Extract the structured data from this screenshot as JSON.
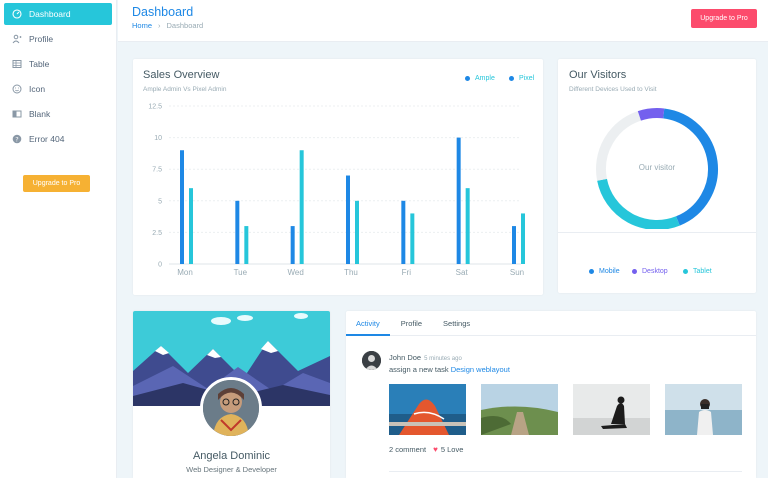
{
  "sidebar": {
    "items": [
      {
        "label": "Dashboard",
        "icon": "gauge-icon",
        "active": true
      },
      {
        "label": "Profile",
        "icon": "user-icon"
      },
      {
        "label": "Table",
        "icon": "table-icon"
      },
      {
        "label": "Icon",
        "icon": "smiley-icon"
      },
      {
        "label": "Blank",
        "icon": "columns-icon"
      },
      {
        "label": "Error 404",
        "icon": "help-circle-icon"
      }
    ],
    "upgrade_label": "Upgrade to Pro"
  },
  "header": {
    "title": "Dashboard",
    "breadcrumb_home": "Home",
    "breadcrumb_sep": "›",
    "breadcrumb_current": "Dashboard",
    "upgrade_label": "Upgrade to Pro"
  },
  "sales": {
    "title": "Sales Overview",
    "subtitle": "Ample Admin Vs Pixel Admin",
    "legend": [
      {
        "name": "Ample",
        "color": "#1e88e5"
      },
      {
        "name": "Pixel",
        "color": "#26c6da"
      }
    ]
  },
  "chart_data": {
    "type": "bar",
    "categories": [
      "Mon",
      "Tue",
      "Wed",
      "Thu",
      "Fri",
      "Sat",
      "Sun"
    ],
    "series": [
      {
        "name": "Ample",
        "values": [
          9,
          5,
          3,
          7,
          5,
          10,
          3
        ],
        "color": "#1e88e5"
      },
      {
        "name": "Pixel",
        "values": [
          6,
          3,
          9,
          5,
          4,
          6,
          4
        ],
        "color": "#26c6da"
      }
    ],
    "yticks": [
      "0",
      "2.5",
      "5",
      "7.5",
      "10",
      "12.5"
    ],
    "ylim": [
      0,
      12.5
    ],
    "grid": true,
    "legend": "top-right"
  },
  "visitors": {
    "title": "Our Visitors",
    "subtitle": "Different Devices Used to Visit",
    "center_label": "Our visitor",
    "legend": [
      {
        "name": "Mobile",
        "color": "#1e88e5"
      },
      {
        "name": "Desktop",
        "color": "#7460ee"
      },
      {
        "name": "Tablet",
        "color": "#26c6da"
      }
    ],
    "chart_data": {
      "type": "pie",
      "style": "donut",
      "segments": [
        {
          "name": "Mobile",
          "value": 42,
          "color": "#1e88e5"
        },
        {
          "name": "Tablet",
          "value": 28,
          "color": "#26c6da"
        },
        {
          "name": "Other",
          "value": 23,
          "color": "#eceff1"
        },
        {
          "name": "Desktop",
          "value": 7,
          "color": "#7460ee"
        }
      ]
    }
  },
  "profile": {
    "name": "Angela Dominic",
    "role": "Web Designer & Developer"
  },
  "activity": {
    "tabs": [
      {
        "label": "Activity",
        "active": true
      },
      {
        "label": "Profile"
      },
      {
        "label": "Settings"
      }
    ],
    "author": "John Doe",
    "time": "5 minutes ago",
    "text": "assign a new task",
    "link": "Design weblayout",
    "comments": "2 comment",
    "love": "5 Love"
  }
}
